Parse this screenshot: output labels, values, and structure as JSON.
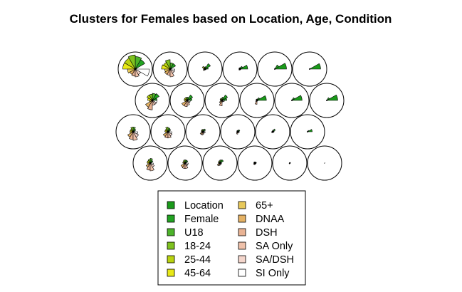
{
  "chart_data": {
    "type": "som-codes-fan",
    "title": "Clusters for Females based on Location, Age, Condition",
    "grid": {
      "rows": 4,
      "cols": 6,
      "topology": "hexagonal"
    },
    "variables": [
      {
        "name": "Location",
        "color": "#1a9a1a"
      },
      {
        "name": "Female",
        "color": "#22a322"
      },
      {
        "name": "U18",
        "color": "#4cb32a"
      },
      {
        "name": "18-24",
        "color": "#7fc21f"
      },
      {
        "name": "25-44",
        "color": "#b9d30f"
      },
      {
        "name": "45-64",
        "color": "#e8e817"
      },
      {
        "name": "65+",
        "color": "#e8c95a"
      },
      {
        "name": "DNAA",
        "color": "#e5b265"
      },
      {
        "name": "DSH",
        "color": "#e9b394"
      },
      {
        "name": "SA Only",
        "color": "#efc1aa"
      },
      {
        "name": "SA/DSH",
        "color": "#f4d6cc"
      },
      {
        "name": "SI Only",
        "color": "#ffffff"
      }
    ],
    "units": [
      [
        0.1,
        0.7,
        0.8,
        0.9,
        0.8,
        0.8,
        0.5,
        0.4,
        0.45,
        0.5,
        0.4,
        0.9
      ],
      [
        0.1,
        0.4,
        0.4,
        0.6,
        0.5,
        0.55,
        0.35,
        0.4,
        0.4,
        0.5,
        0.3,
        0.3
      ],
      [
        0.2,
        0.4,
        0.15,
        0.12,
        0.2,
        0.1,
        0.1,
        0.12,
        0.05,
        0.05,
        0.05,
        0.08
      ],
      [
        0.5,
        0.2,
        0.1,
        0.08,
        0.08,
        0.05,
        0.05,
        0.08,
        0.05,
        0.05,
        0.05,
        0.06
      ],
      [
        0.75,
        0.3,
        0.05,
        0.02,
        0.02,
        0.02,
        0.02,
        0.02,
        0.02,
        0.02,
        0.02,
        0.02
      ],
      [
        0.7,
        0.05,
        0.02,
        0.02,
        0.02,
        0.02,
        0.02,
        0.02,
        0.02,
        0.02,
        0.02,
        0.02
      ],
      [
        0.3,
        0.5,
        0.45,
        0.4,
        0.4,
        0.3,
        0.2,
        0.5,
        0.6,
        0.3,
        0.3,
        0.3
      ],
      [
        0.3,
        0.4,
        0.2,
        0.2,
        0.2,
        0.2,
        0.15,
        0.4,
        0.4,
        0.3,
        0.2,
        0.2
      ],
      [
        0.3,
        0.4,
        0.2,
        0.12,
        0.15,
        0.12,
        0.1,
        0.2,
        0.35,
        0.1,
        0.1,
        0.15
      ],
      [
        0.6,
        0.2,
        0.1,
        0.08,
        0.08,
        0.05,
        0.05,
        0.1,
        0.25,
        0.05,
        0.05,
        0.06
      ],
      [
        0.65,
        0.2,
        0.05,
        0.02,
        0.02,
        0.02,
        0.02,
        0.02,
        0.02,
        0.02,
        0.02,
        0.02
      ],
      [
        0.7,
        0.2,
        0.02,
        0.02,
        0.02,
        0.02,
        0.02,
        0.02,
        0.02,
        0.02,
        0.02,
        0.02
      ],
      [
        0.1,
        0.2,
        0.3,
        0.3,
        0.2,
        0.2,
        0.2,
        0.4,
        0.5,
        0.55,
        0.4,
        0.3
      ],
      [
        0.1,
        0.2,
        0.25,
        0.3,
        0.2,
        0.2,
        0.15,
        0.35,
        0.4,
        0.4,
        0.3,
        0.25
      ],
      [
        0.1,
        0.2,
        0.15,
        0.15,
        0.12,
        0.1,
        0.1,
        0.2,
        0.2,
        0.15,
        0.1,
        0.15
      ],
      [
        0.1,
        0.15,
        0.1,
        0.08,
        0.08,
        0.05,
        0.05,
        0.1,
        0.15,
        0.08,
        0.05,
        0.1
      ],
      [
        0.1,
        0.2,
        0.1,
        0.05,
        0.05,
        0.05,
        0.05,
        0.08,
        0.05,
        0.05,
        0.05,
        0.08
      ],
      [
        0.3,
        0.1,
        0.02,
        0.02,
        0.02,
        0.02,
        0.02,
        0.02,
        0.02,
        0.02,
        0.02,
        0.02
      ],
      [
        0.1,
        0.2,
        0.3,
        0.25,
        0.2,
        0.2,
        0.15,
        0.3,
        0.45,
        0.5,
        0.3,
        0.2
      ],
      [
        0.1,
        0.2,
        0.2,
        0.2,
        0.15,
        0.15,
        0.1,
        0.3,
        0.35,
        0.35,
        0.2,
        0.2
      ],
      [
        0.1,
        0.25,
        0.2,
        0.15,
        0.12,
        0.1,
        0.1,
        0.2,
        0.15,
        0.1,
        0.1,
        0.1
      ],
      [
        0.1,
        0.08,
        0.08,
        0.08,
        0.08,
        0.06,
        0.06,
        0.1,
        0.1,
        0.08,
        0.06,
        0.08
      ],
      [
        0.05,
        0.05,
        0.03,
        0.03,
        0.03,
        0.03,
        0.03,
        0.05,
        0.05,
        0.03,
        0.03,
        0.03
      ],
      [
        0.02,
        0.02,
        0.01,
        0.01,
        0.01,
        0.01,
        0.01,
        0.01,
        0.01,
        0.01,
        0.01,
        0.01
      ]
    ],
    "legend": {
      "position": "bottom-center",
      "columns": 2
    }
  }
}
